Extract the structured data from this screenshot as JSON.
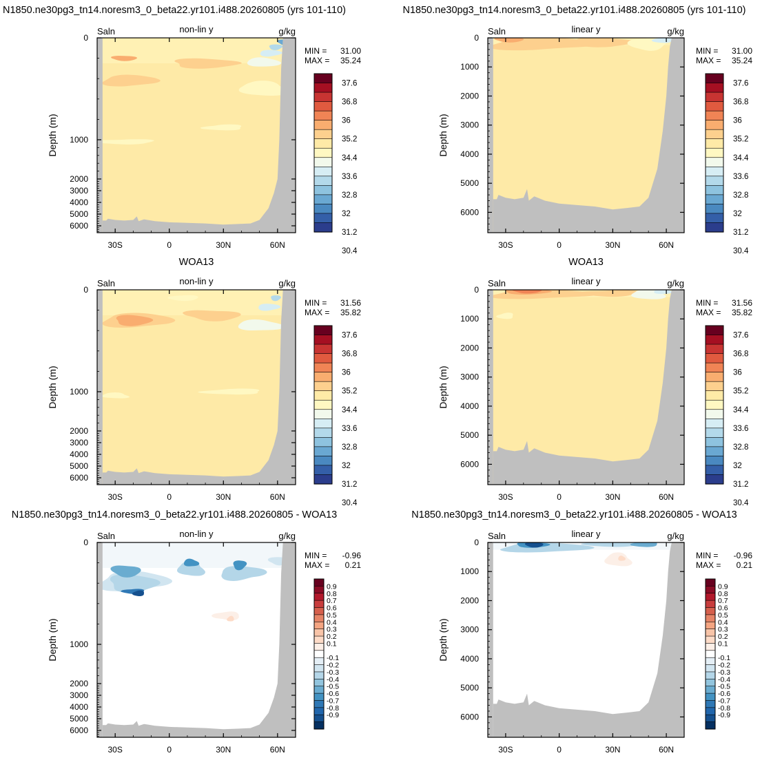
{
  "chart_data": [
    {
      "type": "heatmap",
      "title": "N1850.ne30pg3_tn14.noresm3_0_beta22.yr101.i488.20260805 (yrs 101-110)",
      "variable": "Saln",
      "mode": "non-lin y",
      "units": "g/kg",
      "ylabel": "Depth (m)",
      "yticks": [
        "0",
        "1000",
        "2000",
        "3000",
        "4000",
        "5000",
        "6000"
      ],
      "xticks": [
        "30S",
        "0",
        "30N",
        "60N"
      ],
      "min_label": "MIN =",
      "min_value": "31.00",
      "max_label": "MAX =",
      "max_value": "35.24",
      "colorbar": [
        "37.6",
        "36.8",
        "36",
        "35.2",
        "34.4",
        "33.6",
        "32.8",
        "32",
        "31.2",
        "30.4"
      ],
      "colors": [
        "#67001f",
        "#a50f22",
        "#c83432",
        "#e05a3f",
        "#f08455",
        "#f9ad6f",
        "#fdd08e",
        "#feeaa7",
        "#fff8c2",
        "#f2f9ec",
        "#d6edf4",
        "#b3d9ea",
        "#8ec3df",
        "#6aa8d2",
        "#4a89c0",
        "#345fa8",
        "#2b3d8c"
      ]
    },
    {
      "type": "heatmap",
      "title": "N1850.ne30pg3_tn14.noresm3_0_beta22.yr101.i488.20260805 (yrs 101-110)",
      "variable": "Saln",
      "mode": "linear y",
      "units": "g/kg",
      "ylabel": "Depth (m)",
      "yticks": [
        "0",
        "1000",
        "2000",
        "3000",
        "4000",
        "5000",
        "6000"
      ],
      "xticks": [
        "30S",
        "0",
        "30N",
        "60N"
      ],
      "min_label": "MIN =",
      "min_value": "31.00",
      "max_label": "MAX =",
      "max_value": "35.24",
      "colorbar": [
        "37.6",
        "36.8",
        "36",
        "35.2",
        "34.4",
        "33.6",
        "32.8",
        "32",
        "31.2",
        "30.4"
      ],
      "colors": [
        "#67001f",
        "#a50f22",
        "#c83432",
        "#e05a3f",
        "#f08455",
        "#f9ad6f",
        "#fdd08e",
        "#feeaa7",
        "#fff8c2",
        "#f2f9ec",
        "#d6edf4",
        "#b3d9ea",
        "#8ec3df",
        "#6aa8d2",
        "#4a89c0",
        "#345fa8",
        "#2b3d8c"
      ]
    },
    {
      "type": "heatmap",
      "title": "WOA13",
      "variable": "Saln",
      "mode": "non-lin y",
      "units": "g/kg",
      "ylabel": "Depth (m)",
      "yticks": [
        "0",
        "1000",
        "2000",
        "3000",
        "4000",
        "5000",
        "6000"
      ],
      "xticks": [
        "30S",
        "0",
        "30N",
        "60N"
      ],
      "min_label": "MIN =",
      "min_value": "31.56",
      "max_label": "MAX =",
      "max_value": "35.82",
      "colorbar": [
        "37.6",
        "36.8",
        "36",
        "35.2",
        "34.4",
        "33.6",
        "32.8",
        "32",
        "31.2",
        "30.4"
      ],
      "colors": [
        "#67001f",
        "#a50f22",
        "#c83432",
        "#e05a3f",
        "#f08455",
        "#f9ad6f",
        "#fdd08e",
        "#feeaa7",
        "#fff8c2",
        "#f2f9ec",
        "#d6edf4",
        "#b3d9ea",
        "#8ec3df",
        "#6aa8d2",
        "#4a89c0",
        "#345fa8",
        "#2b3d8c"
      ]
    },
    {
      "type": "heatmap",
      "title": "WOA13",
      "variable": "Saln",
      "mode": "linear y",
      "units": "g/kg",
      "ylabel": "Depth (m)",
      "yticks": [
        "0",
        "1000",
        "2000",
        "3000",
        "4000",
        "5000",
        "6000"
      ],
      "xticks": [
        "30S",
        "0",
        "30N",
        "60N"
      ],
      "min_label": "MIN =",
      "min_value": "31.56",
      "max_label": "MAX =",
      "max_value": "35.82",
      "colorbar": [
        "37.6",
        "36.8",
        "36",
        "35.2",
        "34.4",
        "33.6",
        "32.8",
        "32",
        "31.2",
        "30.4"
      ],
      "colors": [
        "#67001f",
        "#a50f22",
        "#c83432",
        "#e05a3f",
        "#f08455",
        "#f9ad6f",
        "#fdd08e",
        "#feeaa7",
        "#fff8c2",
        "#f2f9ec",
        "#d6edf4",
        "#b3d9ea",
        "#8ec3df",
        "#6aa8d2",
        "#4a89c0",
        "#345fa8",
        "#2b3d8c"
      ]
    },
    {
      "type": "heatmap",
      "title": "N1850.ne30pg3_tn14.noresm3_0_beta22.yr101.i488.20260805 - WOA13",
      "variable": "Saln",
      "mode": "non-lin y",
      "units": "g/kg",
      "ylabel": "Depth (m)",
      "yticks": [
        "0",
        "1000",
        "2000",
        "3000",
        "4000",
        "5000",
        "6000"
      ],
      "xticks": [
        "30S",
        "0",
        "30N",
        "60N"
      ],
      "min_label": "MIN =",
      "min_value": "-0.96",
      "max_label": "MAX =",
      "max_value": "0.21",
      "colorbar": [
        "0.9",
        "0.8",
        "0.7",
        "0.6",
        "0.5",
        "0.4",
        "0.3",
        "0.2",
        "0.1",
        "-0.1",
        "-0.2",
        "-0.3",
        "-0.4",
        "-0.5",
        "-0.6",
        "-0.7",
        "-0.8",
        "-0.9"
      ],
      "colors": [
        "#67001f",
        "#8a0b25",
        "#b2182b",
        "#c83d3d",
        "#d6604d",
        "#e68467",
        "#f4a582",
        "#f8c4a8",
        "#fddbc7",
        "#fcefe7",
        "#ffffff",
        "#e5eff6",
        "#d1e5f0",
        "#b4d6e8",
        "#92c5de",
        "#6aacd0",
        "#4393c3",
        "#2f78b5",
        "#2166ac",
        "#15508e",
        "#053061"
      ]
    },
    {
      "type": "heatmap",
      "title": "N1850.ne30pg3_tn14.noresm3_0_beta22.yr101.i488.20260805 - WOA13",
      "variable": "Saln",
      "mode": "linear y",
      "units": "g/kg",
      "ylabel": "Depth (m)",
      "yticks": [
        "0",
        "1000",
        "2000",
        "3000",
        "4000",
        "5000",
        "6000"
      ],
      "xticks": [
        "30S",
        "0",
        "30N",
        "60N"
      ],
      "min_label": "MIN =",
      "min_value": "-0.96",
      "max_label": "MAX =",
      "max_value": "0.21",
      "colorbar": [
        "0.9",
        "0.8",
        "0.7",
        "0.6",
        "0.5",
        "0.4",
        "0.3",
        "0.2",
        "0.1",
        "-0.1",
        "-0.2",
        "-0.3",
        "-0.4",
        "-0.5",
        "-0.6",
        "-0.7",
        "-0.8",
        "-0.9"
      ],
      "colors": [
        "#67001f",
        "#8a0b25",
        "#b2182b",
        "#c83d3d",
        "#d6604d",
        "#e68467",
        "#f4a582",
        "#f8c4a8",
        "#fddbc7",
        "#fcefe7",
        "#ffffff",
        "#e5eff6",
        "#d1e5f0",
        "#b4d6e8",
        "#92c5de",
        "#6aacd0",
        "#4393c3",
        "#2f78b5",
        "#2166ac",
        "#15508e",
        "#053061"
      ]
    }
  ]
}
